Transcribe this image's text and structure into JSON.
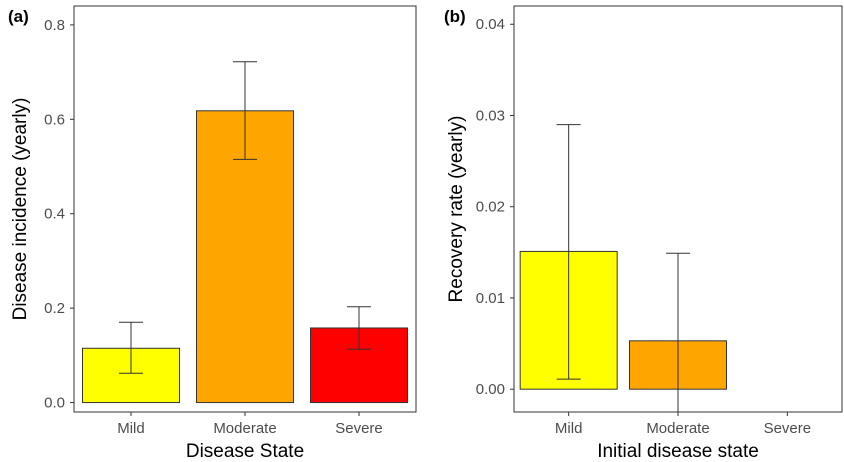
{
  "chart_data": [
    {
      "type": "bar",
      "panel_label": "(a)",
      "categories": [
        "Mild",
        "Moderate",
        "Severe"
      ],
      "values": [
        0.115,
        0.618,
        0.158
      ],
      "error_low": [
        0.062,
        0.515,
        0.113
      ],
      "error_high": [
        0.17,
        0.722,
        0.203
      ],
      "colors": [
        "#ffff00",
        "#ffa500",
        "#ff0000"
      ],
      "xlabel": "Disease State",
      "ylabel": "Disease incidence (yearly)",
      "ylim": [
        -0.02,
        0.84
      ],
      "yticks": [
        0.0,
        0.2,
        0.4,
        0.6,
        0.8
      ],
      "ytick_labels": [
        "0.0",
        "0.2",
        "0.4",
        "0.6",
        "0.8"
      ],
      "grid": false
    },
    {
      "type": "bar",
      "panel_label": "(b)",
      "categories": [
        "Mild",
        "Moderate",
        "Severe"
      ],
      "values": [
        0.0151,
        0.0053,
        0.0
      ],
      "error_low": [
        0.0011,
        -0.0025,
        null
      ],
      "error_high": [
        0.029,
        0.0149,
        null
      ],
      "colors": [
        "#ffff00",
        "#ffa500",
        "#ff0000"
      ],
      "xlabel": "Initial disease state",
      "ylabel": "Recovery rate (yearly)",
      "ylim": [
        -0.0025,
        0.042
      ],
      "yticks": [
        0.0,
        0.01,
        0.02,
        0.03,
        0.04
      ],
      "ytick_labels": [
        "0.00",
        "0.01",
        "0.02",
        "0.03",
        "0.04"
      ],
      "grid": false
    }
  ]
}
